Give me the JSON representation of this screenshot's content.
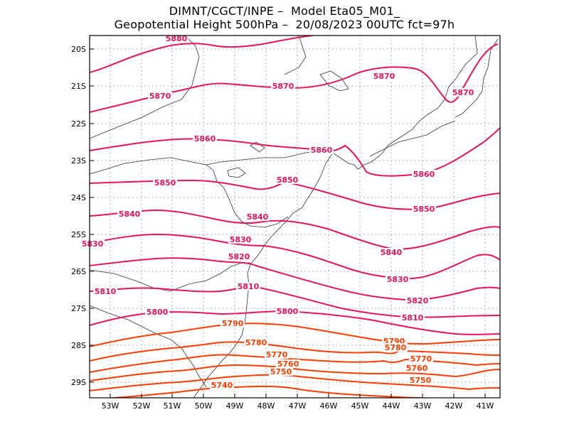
{
  "header": {
    "line1": "DIMNT/CGCT/INPE –  Model Eta05_M01_",
    "line2": "Geopotential Height 500hPa –  20/08/2023 00UTC fct=97h"
  },
  "axes": {
    "lat_labels": [
      "20S",
      "21S",
      "22S",
      "23S",
      "24S",
      "25S",
      "26S",
      "27S",
      "28S",
      "29S"
    ],
    "lon_labels": [
      "53W",
      "52W",
      "51W",
      "50W",
      "49W",
      "48W",
      "47W",
      "46W",
      "45W",
      "44W",
      "43W",
      "42W",
      "41W"
    ]
  },
  "colors": {
    "frame": "#000000",
    "grid": "#9a9a9a",
    "coast": "#333333",
    "contour_high": "#e8135c",
    "contour_low": "#ff3d00"
  },
  "contours": [
    {
      "value": 5880,
      "label": "5880"
    },
    {
      "value": 5870,
      "label": "5870"
    },
    {
      "value": 5860,
      "label": "5860"
    },
    {
      "value": 5850,
      "label": "5850"
    },
    {
      "value": 5840,
      "label": "5840"
    },
    {
      "value": 5830,
      "label": "5830"
    },
    {
      "value": 5820,
      "label": "5820"
    },
    {
      "value": 5810,
      "label": "5810"
    },
    {
      "value": 5800,
      "label": "5800"
    },
    {
      "value": 5790,
      "label": "5790"
    },
    {
      "value": 5780,
      "label": "5780"
    },
    {
      "value": 5770,
      "label": "5770"
    },
    {
      "value": 5760,
      "label": "5760"
    },
    {
      "value": 5750,
      "label": "5750"
    },
    {
      "value": 5740,
      "label": "5740"
    }
  ]
}
